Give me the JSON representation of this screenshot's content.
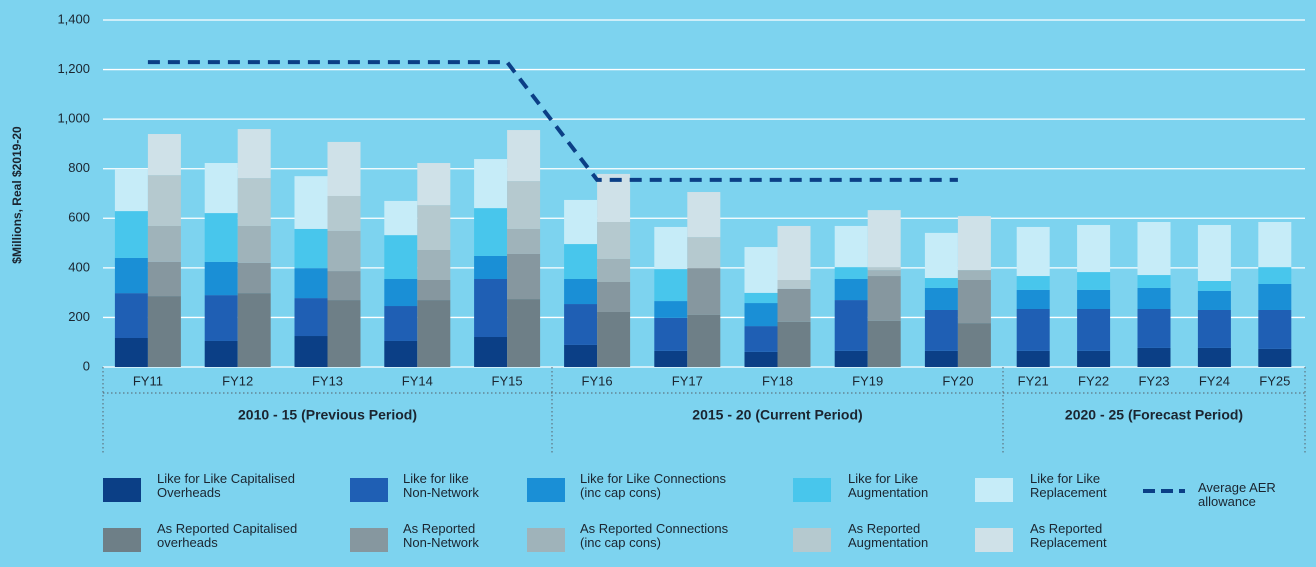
{
  "chart_data": {
    "type": "bar",
    "y_label": "$Millions, Real $2019-20",
    "ylim": [
      0,
      1400
    ],
    "yticks": [
      0,
      {
        "value": 200,
        "label": "200"
      },
      {
        "value": 400,
        "label": "400"
      },
      {
        "value": 600,
        "label": "600"
      },
      {
        "value": 800,
        "label": "800"
      },
      {
        "value": 1000,
        "label": "1,000"
      },
      {
        "value": 1200,
        "label": "1,200"
      },
      {
        "value": 1400,
        "label": "1,400"
      }
    ],
    "grid": true,
    "groups": [
      {
        "label": "2010 - 15 (Previous Period)",
        "categories": [
          "FY11",
          "FY12",
          "FY13",
          "FY14",
          "FY15"
        ]
      },
      {
        "label": "2015 - 20 (Current Period)",
        "categories": [
          "FY16",
          "FY17",
          "FY18",
          "FY19",
          "FY20"
        ]
      },
      {
        "label": "2020 - 25 (Forecast Period)",
        "categories": [
          "FY21",
          "FY22",
          "FY23",
          "FY24",
          "FY25"
        ]
      }
    ],
    "bars": [
      {
        "series": [
          {
            "name": "Like for Like Capitalised\nOverheads",
            "color": "#0b3f86",
            "values": [
              117,
              105,
              125,
              105,
              121,
              89,
              65,
              61,
              65,
              65,
              65,
              65,
              77,
              77,
              73
            ]
          },
          {
            "name": "Like for like\nNon-Network",
            "color": "#1f5fb4",
            "values": [
              181,
              185,
              153,
              141,
              234,
              165,
              133,
              104,
              205,
              165,
              169,
              169,
              157,
              153,
              157
            ]
          },
          {
            "name": "Like for Like Connections\n(inc cap cons)",
            "color": "#1a8fd6",
            "values": [
              142,
              134,
              121,
              109,
              93,
              101,
              68,
              93,
              85,
              89,
              77,
              77,
              85,
              77,
              105
            ]
          },
          {
            "name": "Like for Like\nAugmentation",
            "color": "#48c6ec",
            "values": [
              189,
              197,
              158,
              177,
              193,
              141,
              129,
              41,
              48,
              40,
              56,
              72,
              52,
              40,
              68
            ]
          },
          {
            "name": "Like for Like\nReplacement",
            "color": "#c6ecf8",
            "values": [
              170,
              202,
              213,
              138,
              198,
              178,
              170,
              185,
              166,
              182,
              198,
              190,
              214,
              226,
              182
            ]
          }
        ]
      },
      {
        "series": [
          {
            "name": "As Reported Capitalised\noverheads",
            "color": "#6e7f87",
            "values": [
              286,
              298,
              270,
              270,
              274,
              222,
              210,
              182,
              186,
              177,
              null,
              null,
              null,
              null,
              null
            ]
          },
          {
            "name": "As Reported\nNon-Network",
            "color": "#86979f",
            "values": [
              138,
              122,
              117,
              81,
              182,
              121,
              189,
              133,
              181,
              174,
              null,
              null,
              null,
              null,
              null
            ]
          },
          {
            "name": "As Reported Connections\n(inc cap cons)",
            "color": "#9fb3ba",
            "values": [
              145,
              149,
              162,
              121,
              101,
              93,
              0,
              0,
              24,
              40,
              null,
              null,
              null,
              null,
              null
            ]
          },
          {
            "name": "As Reported\nAugmentation",
            "color": "#b5c9cf",
            "values": [
              205,
              193,
              141,
              181,
              193,
              149,
              125,
              36,
              12,
              0,
              null,
              null,
              null,
              null,
              null
            ]
          },
          {
            "name": "As Reported\nReplacement",
            "color": "#cfe1e8",
            "values": [
              166,
              198,
              218,
              170,
              206,
              194,
              182,
              218,
              230,
              218,
              null,
              null,
              null,
              null,
              null
            ]
          }
        ]
      }
    ],
    "lines": [
      {
        "name": "Average AER\nallowance",
        "color": "#0b3f86",
        "values": [
          1230,
          1230,
          1230,
          1230,
          1230,
          755,
          755,
          755,
          755,
          755,
          null,
          null,
          null,
          null,
          null
        ]
      }
    ]
  }
}
